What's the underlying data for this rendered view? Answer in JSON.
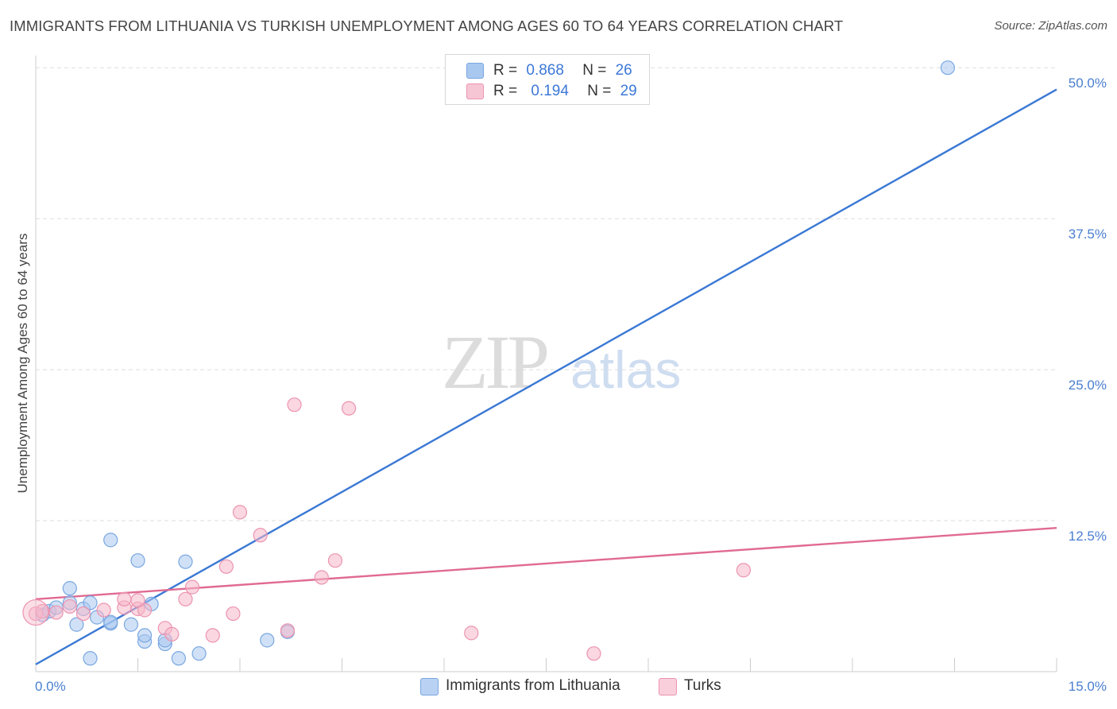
{
  "title": "IMMIGRANTS FROM LITHUANIA VS TURKISH UNEMPLOYMENT AMONG AGES 60 TO 64 YEARS CORRELATION CHART",
  "source": "Source: ZipAtlas.com",
  "watermark": {
    "zip": "ZIP",
    "atlas": "atlas"
  },
  "colors": {
    "blue_fill": "#a9c8f0",
    "blue_stroke": "#7aa7e0",
    "blue_line": "#3a78d4",
    "pink_fill": "#f6b7c9",
    "pink_stroke": "#ec94b0",
    "pink_line": "#e06a93",
    "accent_text": "#3c78d8",
    "grid": "#dddddd"
  },
  "legend_top": [
    {
      "r_label": "R =",
      "r_value": "0.868",
      "n_label": "N =",
      "n_value": "26"
    },
    {
      "r_label": "R =",
      "r_value": "0.194",
      "n_label": "N =",
      "n_value": "29"
    }
  ],
  "chart_data": {
    "type": "scatter",
    "title": "IMMIGRANTS FROM LITHUANIA VS TURKISH UNEMPLOYMENT AMONG AGES 60 TO 64 YEARS CORRELATION CHART",
    "xlabel": "",
    "ylabel": "Unemployment Among Ages 60 to 64 years",
    "xlim": [
      0,
      15
    ],
    "ylim": [
      0,
      51
    ],
    "x_tick_labels": [
      "0.0%",
      "15.0%"
    ],
    "y_ticks": [
      12.5,
      25.0,
      37.5,
      50.0
    ],
    "y_tick_labels": [
      "12.5%",
      "25.0%",
      "37.5%",
      "50.0%"
    ],
    "grid": true,
    "legend": "bottom-center",
    "series": [
      {
        "name": "Immigrants from Lithuania",
        "color": "blue",
        "points": [
          [
            0.1,
            4.7
          ],
          [
            0.2,
            5.0
          ],
          [
            0.3,
            5.3
          ],
          [
            0.5,
            5.7
          ],
          [
            0.7,
            5.2
          ],
          [
            0.5,
            6.9
          ],
          [
            1.1,
            4.0
          ],
          [
            0.9,
            4.5
          ],
          [
            0.8,
            5.7
          ],
          [
            1.1,
            4.1
          ],
          [
            0.6,
            3.9
          ],
          [
            1.4,
            3.9
          ],
          [
            1.1,
            10.9
          ],
          [
            1.5,
            9.2
          ],
          [
            1.6,
            2.5
          ],
          [
            1.6,
            3.0
          ],
          [
            1.9,
            2.3
          ],
          [
            1.9,
            2.6
          ],
          [
            1.7,
            5.6
          ],
          [
            2.2,
            9.1
          ],
          [
            2.4,
            1.5
          ],
          [
            2.1,
            1.1
          ],
          [
            0.8,
            1.1
          ],
          [
            3.7,
            3.3
          ],
          [
            3.4,
            2.6
          ],
          [
            13.4,
            50.0
          ]
        ],
        "trend": {
          "start": [
            0,
            0.6
          ],
          "end": [
            15,
            48.2
          ]
        }
      },
      {
        "name": "Turks",
        "color": "pink",
        "points": [
          [
            0.0,
            4.8
          ],
          [
            0.1,
            5.0
          ],
          [
            0.3,
            4.9
          ],
          [
            0.5,
            5.4
          ],
          [
            0.7,
            4.8
          ],
          [
            1.0,
            5.1
          ],
          [
            1.3,
            5.3
          ],
          [
            1.3,
            6.0
          ],
          [
            1.5,
            5.2
          ],
          [
            1.6,
            5.1
          ],
          [
            1.5,
            5.9
          ],
          [
            1.9,
            3.6
          ],
          [
            2.0,
            3.1
          ],
          [
            2.2,
            6.0
          ],
          [
            2.3,
            7.0
          ],
          [
            2.6,
            3.0
          ],
          [
            2.8,
            8.7
          ],
          [
            2.9,
            4.8
          ],
          [
            3.0,
            13.2
          ],
          [
            3.3,
            11.3
          ],
          [
            3.7,
            3.4
          ],
          [
            3.8,
            22.1
          ],
          [
            4.2,
            7.8
          ],
          [
            4.4,
            9.2
          ],
          [
            4.6,
            21.8
          ],
          [
            6.4,
            3.2
          ],
          [
            8.2,
            1.5
          ],
          [
            10.4,
            8.4
          ],
          [
            0.0,
            4.9
          ]
        ],
        "trend": {
          "start": [
            0,
            6.0
          ],
          "end": [
            15,
            11.9
          ]
        }
      }
    ]
  }
}
